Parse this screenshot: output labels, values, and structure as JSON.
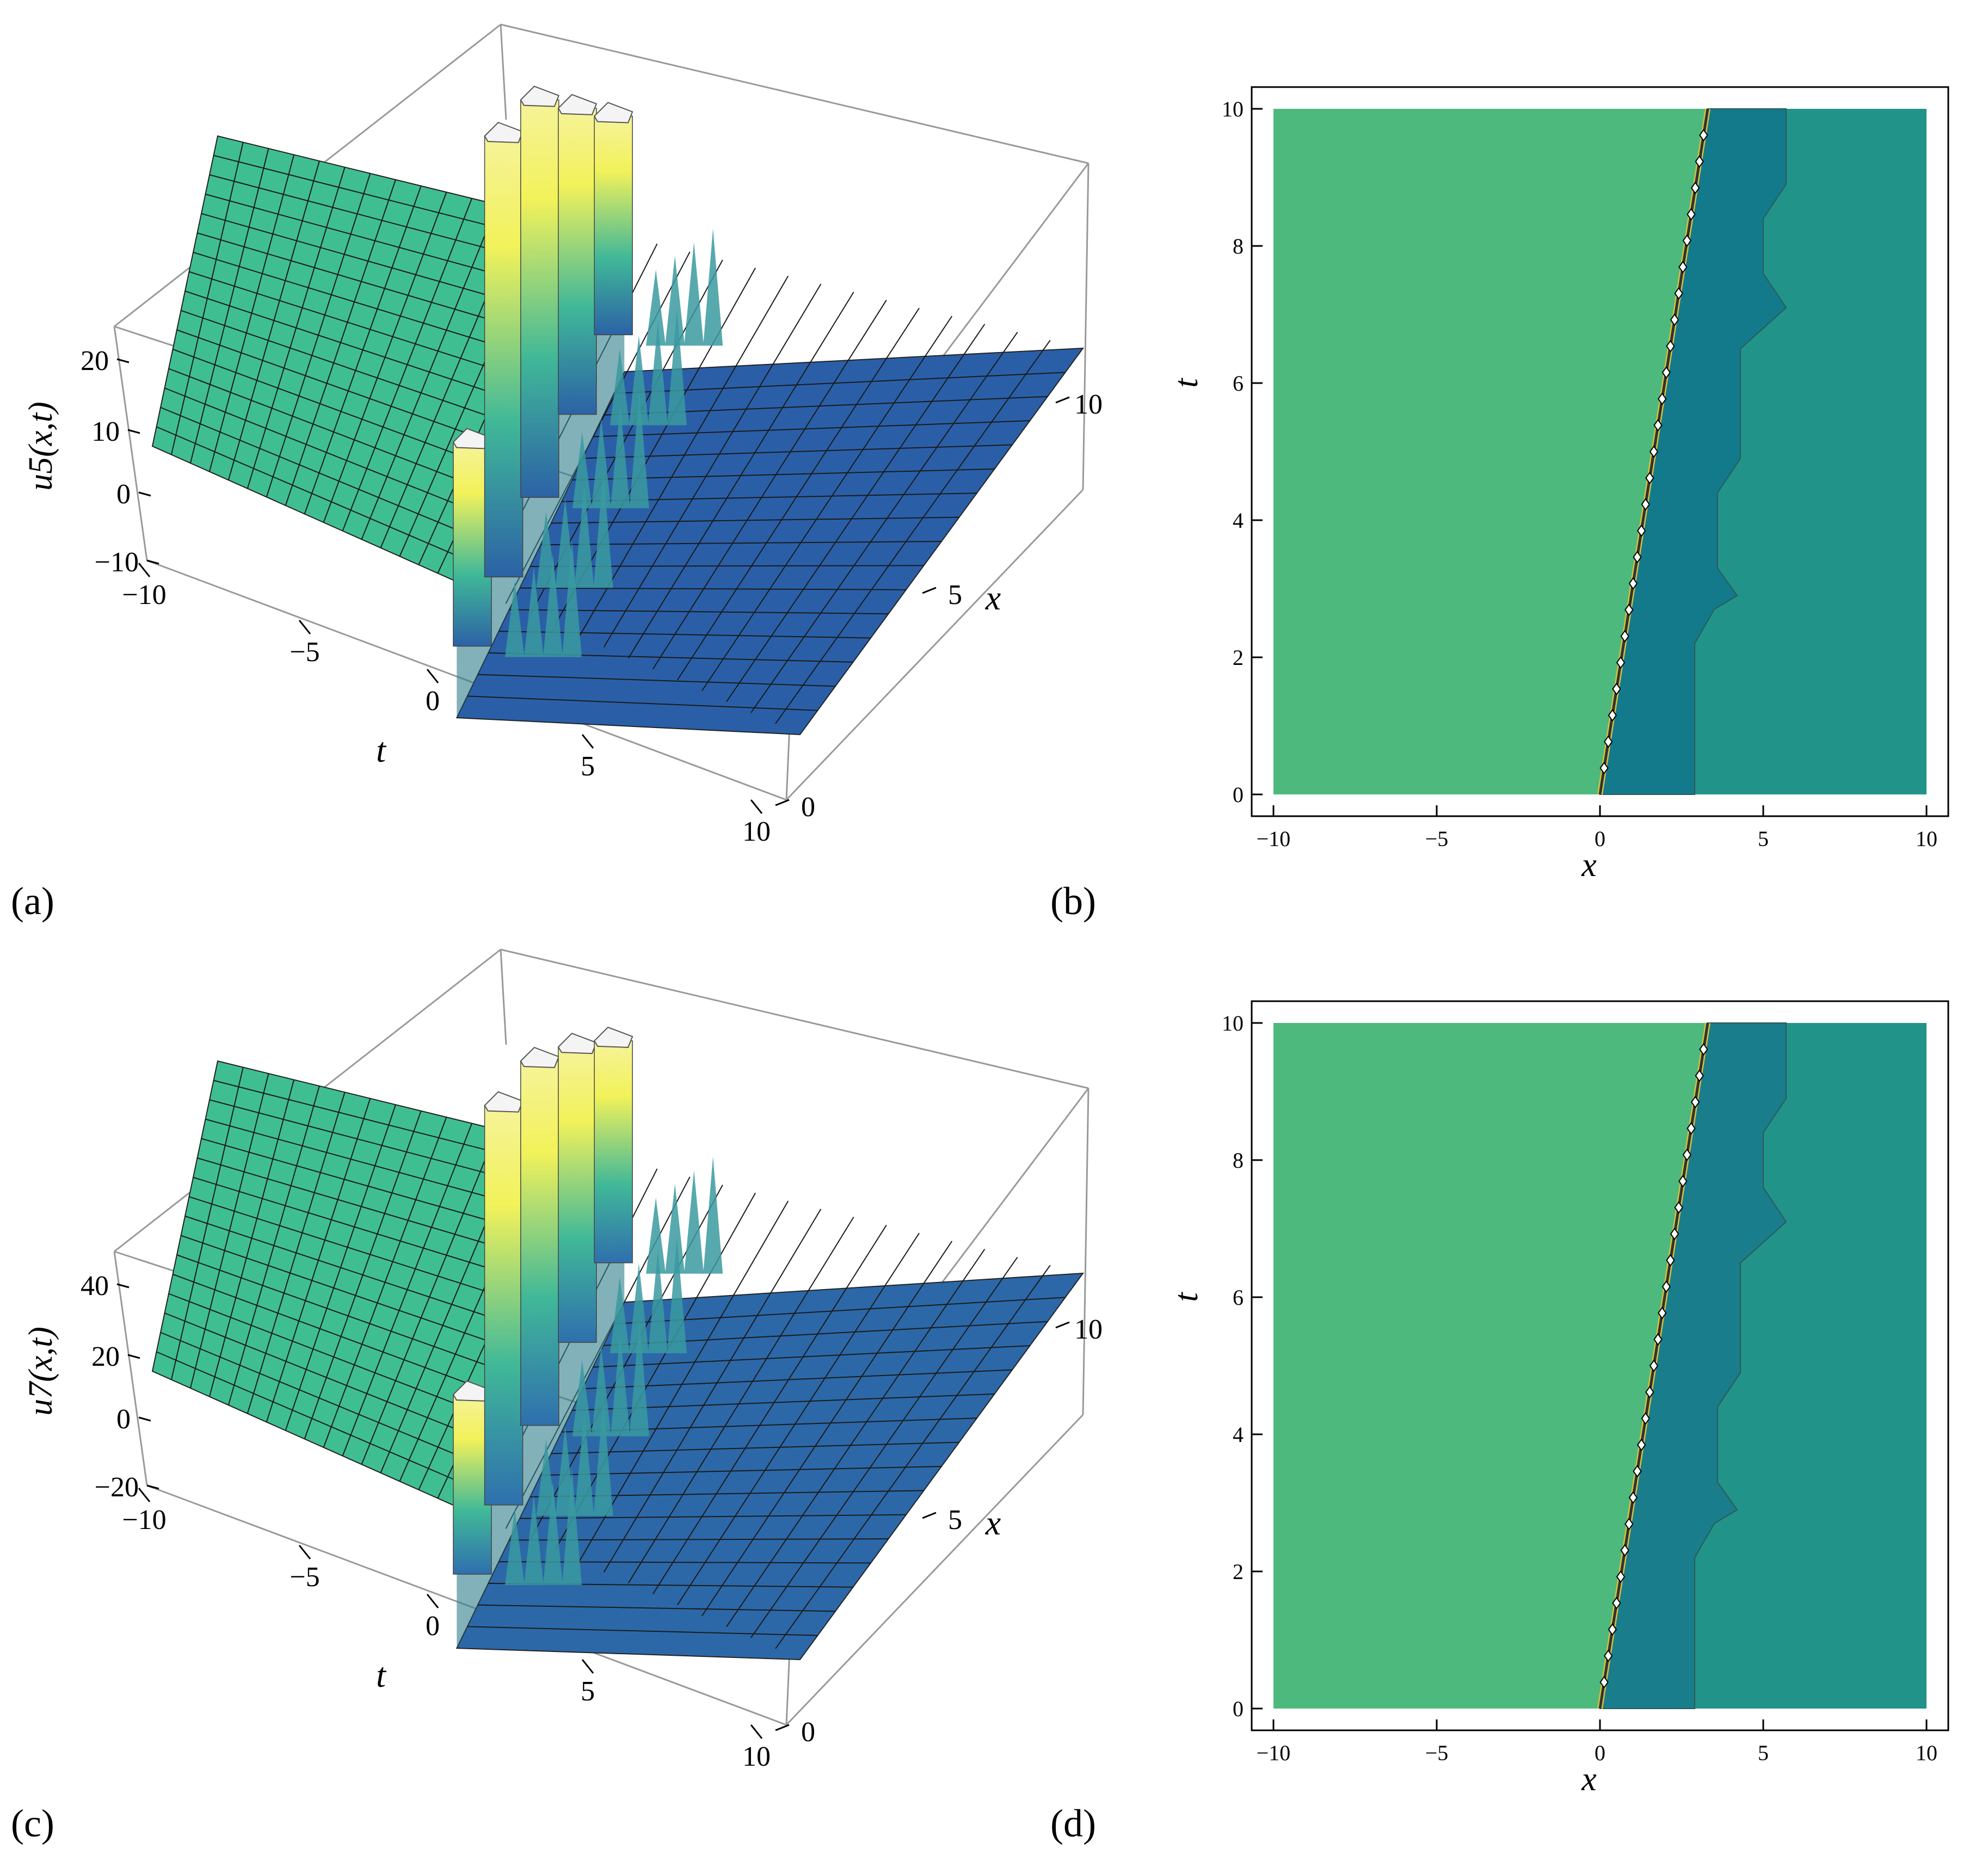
{
  "figure": {
    "labels": [
      "(a)",
      "(b)",
      "(c)",
      "(d)"
    ]
  },
  "colors": {
    "plateau_left": "#3fbf91",
    "plateau_right": "#2a5fa8",
    "plateau_right_c": "#2c68a8",
    "peak_yellow": "#f2f25a",
    "contour_left": "#4db97d",
    "contour_mid": "#137a8c",
    "contour_mid_d": "#1a7d8c",
    "contour_right": "#229388",
    "frame": "#999999"
  },
  "chart_data": [
    {
      "panel": "(a)",
      "type": "surface3d",
      "zlabel": "u5(x,t)",
      "xlabel": "x",
      "tlabel": "t",
      "z_ticks": [
        "20",
        "10",
        "0",
        "−10"
      ],
      "t_ticks": [
        "−10",
        "−5",
        "0",
        "5",
        "10"
      ],
      "x_ticks": [
        "10",
        "5",
        "0"
      ],
      "t_range": [
        -10,
        10
      ],
      "x_range": [
        0,
        10
      ],
      "plateau_left_value": 5,
      "plateau_right_value": -8,
      "peaks": [
        {
          "x": 0.3,
          "height": 8
        },
        {
          "x": 2.3,
          "height": 20
        },
        {
          "x": 4.6,
          "height": 22
        },
        {
          "x": 7.0,
          "height": 22
        },
        {
          "x": 9.3,
          "height": 22
        }
      ]
    },
    {
      "panel": "(b)",
      "type": "contour",
      "xlabel": "x",
      "ylabel": "t",
      "x_ticks": [
        "−10",
        "−5",
        "0",
        "5",
        "10"
      ],
      "y_ticks": [
        "0",
        "2",
        "4",
        "6",
        "8",
        "10"
      ],
      "xlim": [
        -10,
        10
      ],
      "ylim": [
        0,
        10
      ],
      "front": [
        [
          0,
          0
        ],
        [
          3.3,
          10
        ]
      ],
      "boundary": [
        [
          2.9,
          0
        ],
        [
          2.9,
          2.2
        ],
        [
          3.5,
          2.7
        ],
        [
          4.2,
          2.9
        ],
        [
          3.6,
          3.3
        ],
        [
          3.6,
          4.4
        ],
        [
          4.3,
          4.9
        ],
        [
          4.3,
          6.5
        ],
        [
          5.7,
          7.1
        ],
        [
          5.0,
          7.6
        ],
        [
          5.0,
          8.4
        ],
        [
          5.7,
          8.9
        ],
        [
          5.7,
          10
        ]
      ]
    },
    {
      "panel": "(c)",
      "type": "surface3d",
      "zlabel": "u7(x,t)",
      "xlabel": "x",
      "tlabel": "t",
      "z_ticks": [
        "40",
        "20",
        "0",
        "−20"
      ],
      "t_ticks": [
        "−10",
        "−5",
        "0",
        "5",
        "10"
      ],
      "x_ticks": [
        "10",
        "5",
        "0"
      ],
      "t_range": [
        -10,
        10
      ],
      "x_range": [
        0,
        10
      ],
      "plateau_left_value": 10,
      "plateau_right_value": -15,
      "peaks": [
        {
          "x": 0.3,
          "height": 14
        },
        {
          "x": 2.3,
          "height": 36
        },
        {
          "x": 4.6,
          "height": 40
        },
        {
          "x": 7.0,
          "height": 42
        },
        {
          "x": 9.3,
          "height": 44
        }
      ]
    },
    {
      "panel": "(d)",
      "type": "contour",
      "xlabel": "x",
      "ylabel": "t",
      "x_ticks": [
        "−10",
        "−5",
        "0",
        "5",
        "10"
      ],
      "y_ticks": [
        "0",
        "2",
        "4",
        "6",
        "8",
        "10"
      ],
      "xlim": [
        -10,
        10
      ],
      "ylim": [
        0,
        10
      ],
      "front": [
        [
          0,
          0
        ],
        [
          3.3,
          10
        ]
      ],
      "boundary": [
        [
          2.9,
          0
        ],
        [
          2.9,
          2.2
        ],
        [
          3.5,
          2.7
        ],
        [
          4.2,
          2.9
        ],
        [
          3.6,
          3.3
        ],
        [
          3.6,
          4.4
        ],
        [
          4.3,
          4.9
        ],
        [
          4.3,
          6.5
        ],
        [
          5.7,
          7.1
        ],
        [
          5.0,
          7.6
        ],
        [
          5.0,
          8.4
        ],
        [
          5.7,
          8.9
        ],
        [
          5.7,
          10
        ]
      ]
    }
  ]
}
